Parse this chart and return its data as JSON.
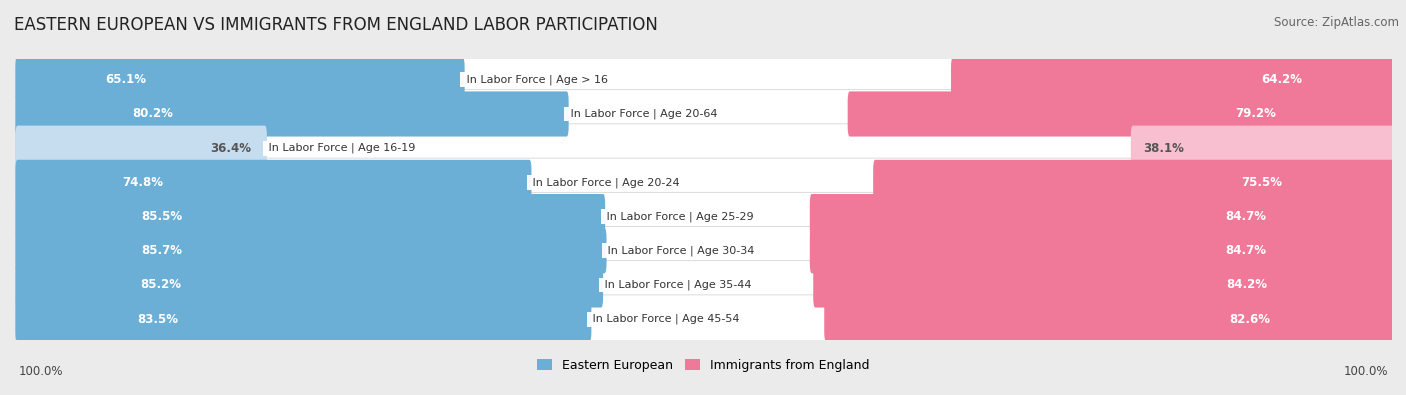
{
  "title": "EASTERN EUROPEAN VS IMMIGRANTS FROM ENGLAND LABOR PARTICIPATION",
  "source": "Source: ZipAtlas.com",
  "categories": [
    "In Labor Force | Age > 16",
    "In Labor Force | Age 20-64",
    "In Labor Force | Age 16-19",
    "In Labor Force | Age 20-24",
    "In Labor Force | Age 25-29",
    "In Labor Force | Age 30-34",
    "In Labor Force | Age 35-44",
    "In Labor Force | Age 45-54"
  ],
  "eastern_european": [
    65.1,
    80.2,
    36.4,
    74.8,
    85.5,
    85.7,
    85.2,
    83.5
  ],
  "immigrants_england": [
    64.2,
    79.2,
    38.1,
    75.5,
    84.7,
    84.7,
    84.2,
    82.6
  ],
  "ee_color_dark": "#6BAED6",
  "ee_color_light": "#C6DCEF",
  "ie_color_dark": "#F07898",
  "ie_color_light": "#F7BFCF",
  "bg_color": "#EBEBEB",
  "title_fontsize": 12,
  "value_fontsize": 8.5,
  "cat_fontsize": 8.0,
  "source_fontsize": 8.5,
  "legend_fontsize": 9,
  "bottom_label": "100.0%",
  "light_threshold": 50
}
